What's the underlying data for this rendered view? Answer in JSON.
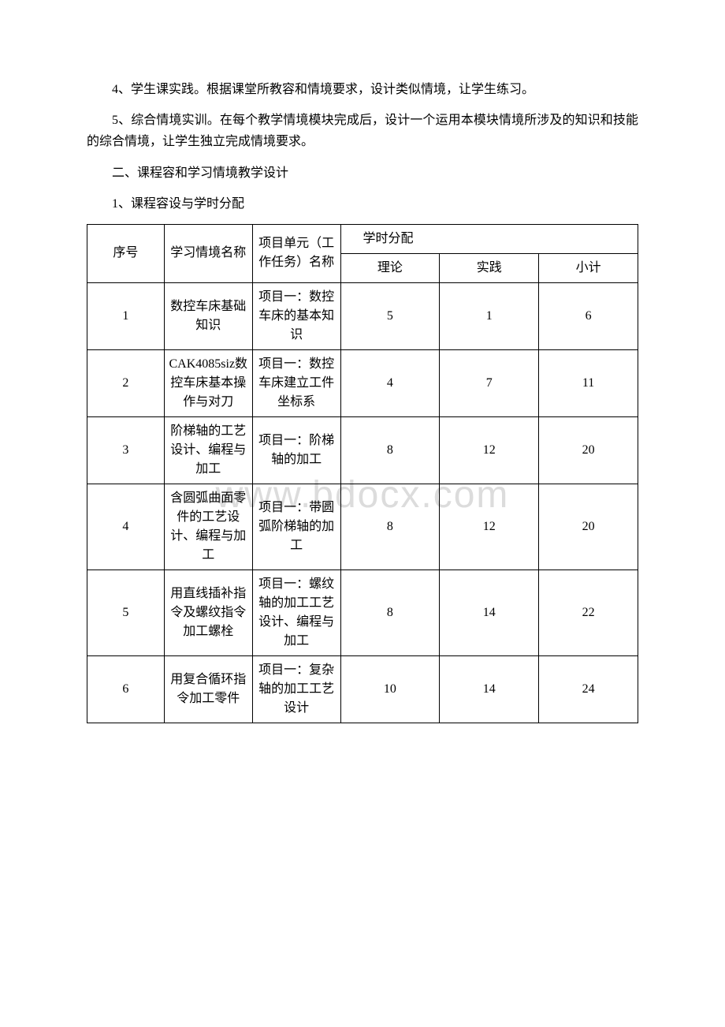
{
  "paragraphs": {
    "p1": "4、学生课实践。根据课堂所教容和情境要求，设计类似情境，让学生练习。",
    "p2": "5、综合情境实训。在每个教学情境模块完成后，设计一个运用本模块情境所涉及的知识和技能的综合情境，让学生独立完成情境要求。",
    "p3": "二、课程容和学习情境教学设计",
    "p4": "1、课程容设与学时分配"
  },
  "table": {
    "headers": {
      "seq": "序号",
      "name": "学习情境名称",
      "project": "项目单元（工作任务）名称",
      "spanner": "学时分配",
      "theory": "理论",
      "practice": "实践",
      "subtotal": "小计"
    },
    "rows": [
      {
        "seq": "1",
        "name": "数控车床基础知识",
        "project": "项目一：数控车床的基本知识",
        "theory": "5",
        "practice": "1",
        "subtotal": "6"
      },
      {
        "seq": "2",
        "name": "CAK4085siz数控车床基本操作与对刀",
        "project": "项目一：数控车床建立工件坐标系",
        "theory": "4",
        "practice": "7",
        "subtotal": "11"
      },
      {
        "seq": "3",
        "name": "阶梯轴的工艺设计、编程与加工",
        "project": "项目一：阶梯轴的加工",
        "theory": "8",
        "practice": "12",
        "subtotal": "20"
      },
      {
        "seq": "4",
        "name": "含圆弧曲面零件的工艺设计、编程与加工",
        "project": "项目一：带圆弧阶梯轴的加工",
        "theory": "8",
        "practice": "12",
        "subtotal": "20"
      },
      {
        "seq": "5",
        "name": "用直线插补指令及螺纹指令加工螺栓",
        "project": "项目一：螺纹轴的加工工艺设计、编程与加工",
        "theory": "8",
        "practice": "14",
        "subtotal": "22"
      },
      {
        "seq": "6",
        "name": "用复合循环指令加工零件",
        "project": "项目一：复杂轴的加工工艺设计",
        "theory": "10",
        "practice": "14",
        "subtotal": "24"
      }
    ]
  },
  "watermark": "www.bdocx.com",
  "colors": {
    "text": "#000000",
    "background": "#ffffff",
    "border": "#000000",
    "watermark": "#dcdcdc"
  }
}
